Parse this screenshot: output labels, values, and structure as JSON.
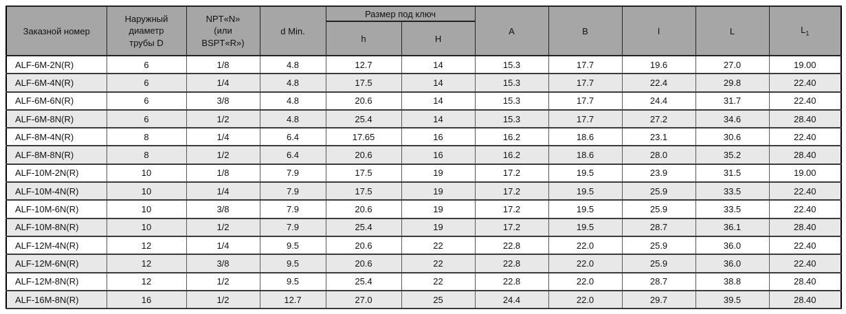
{
  "table": {
    "header": {
      "order": "Заказной номер",
      "outer_diameter": "Наружный\nдиаметр\nтрубы D",
      "npt": "NPT«N»\n(или\nBSPT«R»)",
      "d_min": "d Min.",
      "wrench_group": "Размер под ключ",
      "h_small": "h",
      "h_cap": "H",
      "a": "A",
      "b": "B",
      "l_small": "l",
      "l_cap": "L",
      "l1_main": "L",
      "l1_sub": "1"
    },
    "column_ids": [
      "order-number",
      "outer-diameter-d",
      "npt-bspt-size",
      "d-min",
      "wrench-h",
      "wrench-h-cap",
      "a",
      "b",
      "l-small",
      "l-cap",
      "l1"
    ],
    "rows": [
      [
        "ALF-6M-2N(R)",
        "6",
        "1/8",
        "4.8",
        "12.7",
        "14",
        "15.3",
        "17.7",
        "19.6",
        "27.0",
        "19.00"
      ],
      [
        "ALF-6M-4N(R)",
        "6",
        "1/4",
        "4.8",
        "17.5",
        "14",
        "15.3",
        "17.7",
        "22.4",
        "29.8",
        "22.40"
      ],
      [
        "ALF-6M-6N(R)",
        "6",
        "3/8",
        "4.8",
        "20.6",
        "14",
        "15.3",
        "17.7",
        "24.4",
        "31.7",
        "22.40"
      ],
      [
        "ALF-6M-8N(R)",
        "6",
        "1/2",
        "4.8",
        "25.4",
        "14",
        "15.3",
        "17.7",
        "27.2",
        "34.6",
        "28.40"
      ],
      [
        "ALF-8M-4N(R)",
        "8",
        "1/4",
        "6.4",
        "17.65",
        "16",
        "16.2",
        "18.6",
        "23.1",
        "30.6",
        "22.40"
      ],
      [
        "ALF-8M-8N(R)",
        "8",
        "1/2",
        "6.4",
        "20.6",
        "16",
        "16.2",
        "18.6",
        "28.0",
        "35.2",
        "28.40"
      ],
      [
        "ALF-10M-2N(R)",
        "10",
        "1/8",
        "7.9",
        "17.5",
        "19",
        "17.2",
        "19.5",
        "23.9",
        "31.5",
        "19.00"
      ],
      [
        "ALF-10M-4N(R)",
        "10",
        "1/4",
        "7.9",
        "17.5",
        "19",
        "17.2",
        "19.5",
        "25.9",
        "33.5",
        "22.40"
      ],
      [
        "ALF-10M-6N(R)",
        "10",
        "3/8",
        "7.9",
        "20.6",
        "19",
        "17.2",
        "19.5",
        "25.9",
        "33.5",
        "22.40"
      ],
      [
        "ALF-10M-8N(R)",
        "10",
        "1/2",
        "7.9",
        "25.4",
        "19",
        "17.2",
        "19.5",
        "28.7",
        "36.1",
        "28.40"
      ],
      [
        "ALF-12M-4N(R)",
        "12",
        "1/4",
        "9.5",
        "20.6",
        "22",
        "22.8",
        "22.0",
        "25.9",
        "36.0",
        "22.40"
      ],
      [
        "ALF-12M-6N(R)",
        "12",
        "3/8",
        "9.5",
        "20.6",
        "22",
        "22.8",
        "22.0",
        "25.9",
        "36.0",
        "22.40"
      ],
      [
        "ALF-12M-8N(R)",
        "12",
        "1/2",
        "9.5",
        "25.4",
        "22",
        "22.8",
        "22.0",
        "28.7",
        "38.8",
        "28.40"
      ],
      [
        "ALF-16M-8N(R)",
        "16",
        "1/2",
        "12.7",
        "27.0",
        "25",
        "24.4",
        "22.0",
        "29.7",
        "39.5",
        "28.40"
      ]
    ],
    "colors": {
      "header_bg": "#a6a6a6",
      "row_alt_bg": "#e8e8e8",
      "row_bg": "#ffffff",
      "border_outer": "#000000",
      "border_inner": "#595959",
      "text": "#111111"
    }
  }
}
